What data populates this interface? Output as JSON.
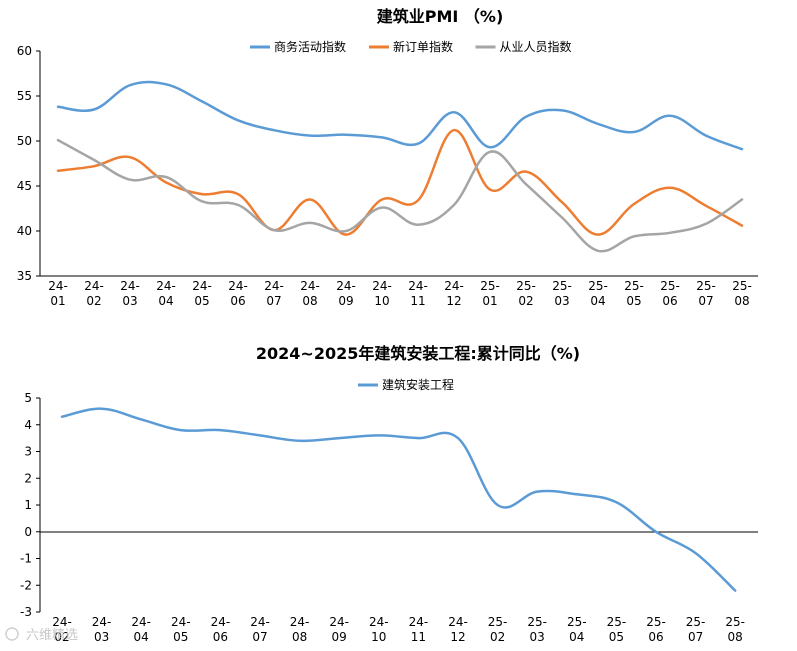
{
  "chart_data": [
    {
      "type": "line",
      "title": "建筑业PMI （%)",
      "xlabel": "",
      "ylabel": "",
      "ylim": [
        35,
        60
      ],
      "yticks": [
        "60",
        "55",
        "50",
        "45",
        "40",
        "35"
      ],
      "categories": [
        "24-01",
        "24-02",
        "24-03",
        "24-04",
        "24-05",
        "24-06",
        "24-07",
        "24-08",
        "24-09",
        "24-10",
        "24-11",
        "24-12",
        "25-01",
        "25-02",
        "25-03",
        "25-04",
        "25-05",
        "25-06",
        "25-07",
        "25-08"
      ],
      "legend_position": "top",
      "series": [
        {
          "name": "商务活动指数",
          "color": "#5b9bd5",
          "values": [
            53.8,
            53.5,
            56.2,
            56.3,
            54.4,
            52.3,
            51.2,
            50.6,
            50.7,
            50.4,
            49.7,
            53.2,
            49.3,
            52.7,
            53.4,
            51.9,
            51.0,
            52.8,
            50.6,
            49.1
          ]
        },
        {
          "name": "新订单指数",
          "color": "#ed7d31",
          "values": [
            46.7,
            47.2,
            48.2,
            45.4,
            44.1,
            44.1,
            40.1,
            43.5,
            39.6,
            43.5,
            43.4,
            51.2,
            44.6,
            46.6,
            43.2,
            39.6,
            43.0,
            44.8,
            42.8,
            40.6
          ]
        },
        {
          "name": "从业人员指数",
          "color": "#a5a5a5",
          "values": [
            50.1,
            47.9,
            45.7,
            46.0,
            43.3,
            42.9,
            40.1,
            40.9,
            40.0,
            42.6,
            40.7,
            42.9,
            48.8,
            45.2,
            41.5,
            37.8,
            39.4,
            39.8,
            40.8,
            43.5
          ]
        }
      ]
    },
    {
      "type": "line",
      "title": "2024~2025年建筑安装工程:累计同比（%)",
      "xlabel": "",
      "ylabel": "",
      "ylim": [
        -3,
        5
      ],
      "yticks": [
        "5",
        "4",
        "3",
        "2",
        "1",
        "0",
        "-1",
        "-2",
        "-3"
      ],
      "categories": [
        "24-02",
        "24-03",
        "24-04",
        "24-05",
        "24-06",
        "24-07",
        "24-08",
        "24-09",
        "24-10",
        "24-11",
        "24-12",
        "25-02",
        "25-03",
        "25-04",
        "25-05",
        "25-06",
        "25-07",
        "25-08"
      ],
      "legend_position": "top",
      "series": [
        {
          "name": "建筑安装工程",
          "color": "#5b9bd5",
          "values": [
            4.3,
            4.6,
            4.2,
            3.8,
            3.8,
            3.6,
            3.4,
            3.5,
            3.6,
            3.5,
            3.5,
            1.0,
            1.5,
            1.4,
            1.1,
            0.0,
            -0.8,
            -2.2
          ]
        }
      ]
    }
  ],
  "watermark": "六维精选"
}
